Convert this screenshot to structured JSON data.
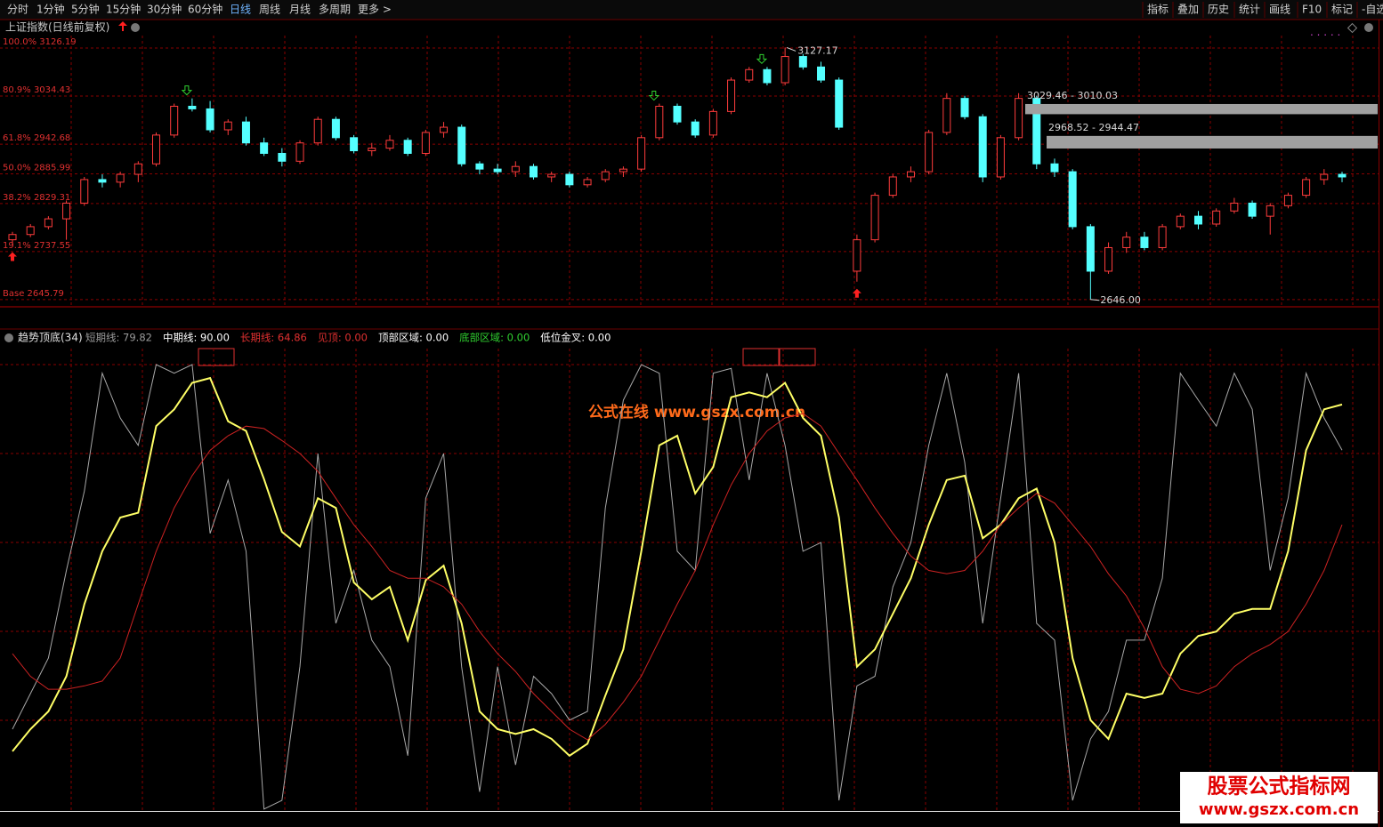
{
  "toolbar": {
    "left": [
      "分时",
      "1分钟",
      "5分钟",
      "15分钟",
      "30分钟",
      "60分钟",
      "日线",
      "周线",
      "月线",
      "多周期",
      "更多 >"
    ],
    "right": [
      "指标",
      "叠加",
      "历史",
      "统计",
      "画线",
      "F10",
      "标记",
      "-自选"
    ]
  },
  "watermarks": [
    "公式在线 www.gszx.com.cn",
    "股票公式指标网",
    "www.gszx.com.cn"
  ],
  "chart_data": [
    {
      "type": "candlestick",
      "title": "上证指数(日线前复权)",
      "ylim": [
        2632,
        3150
      ],
      "up_color": "#ff3c3c",
      "down_color": "#54ffff",
      "levels": [
        {
          "value": 3126.19,
          "label": "100.0% 3126.19"
        },
        {
          "value": 3034.43,
          "label": "80.9% 3034.43"
        },
        {
          "value": 2942.68,
          "label": "61.8% 2942.68"
        },
        {
          "value": 2885.99,
          "label": "50.0% 2885.99"
        },
        {
          "value": 2829.31,
          "label": "38.2% 2829.31"
        },
        {
          "value": 2737.55,
          "label": "19.1% 2737.55"
        },
        {
          "value": 2645.79,
          "label": "Base 2645.79"
        }
      ],
      "zones": [
        {
          "high": 3029.46,
          "low": 3010.03,
          "label": "3029.46 - 3010.03"
        },
        {
          "high": 2968.52,
          "low": 2944.47,
          "label": "2968.52 - 2944.47"
        }
      ],
      "annotations": [
        {
          "value": 3127.17,
          "label": "3127.17"
        },
        {
          "value": 2646.0,
          "label": "2646.00"
        }
      ],
      "candles": [
        [
          2760,
          2775,
          2750,
          2770
        ],
        [
          2770,
          2790,
          2765,
          2785
        ],
        [
          2785,
          2805,
          2780,
          2800
        ],
        [
          2800,
          2835,
          2760,
          2830
        ],
        [
          2830,
          2880,
          2825,
          2875
        ],
        [
          2875,
          2885,
          2860,
          2870
        ],
        [
          2870,
          2890,
          2860,
          2885
        ],
        [
          2885,
          2910,
          2870,
          2905
        ],
        [
          2905,
          2965,
          2900,
          2960
        ],
        [
          2960,
          3020,
          2955,
          3015
        ],
        [
          3015,
          3030,
          3005,
          3010
        ],
        [
          3010,
          3025,
          2965,
          2970
        ],
        [
          2970,
          2990,
          2960,
          2985
        ],
        [
          2985,
          2995,
          2940,
          2945
        ],
        [
          2945,
          2955,
          2920,
          2925
        ],
        [
          2925,
          2935,
          2900,
          2910
        ],
        [
          2910,
          2950,
          2905,
          2945
        ],
        [
          2945,
          2995,
          2940,
          2990
        ],
        [
          2990,
          2995,
          2950,
          2955
        ],
        [
          2955,
          2960,
          2925,
          2930
        ],
        [
          2930,
          2945,
          2920,
          2935
        ],
        [
          2935,
          2960,
          2930,
          2950
        ],
        [
          2950,
          2955,
          2920,
          2925
        ],
        [
          2925,
          2970,
          2920,
          2965
        ],
        [
          2965,
          2985,
          2955,
          2975
        ],
        [
          2975,
          2980,
          2900,
          2905
        ],
        [
          2905,
          2910,
          2885,
          2895
        ],
        [
          2895,
          2905,
          2885,
          2890
        ],
        [
          2890,
          2910,
          2880,
          2900
        ],
        [
          2900,
          2905,
          2875,
          2880
        ],
        [
          2880,
          2890,
          2870,
          2885
        ],
        [
          2885,
          2890,
          2860,
          2865
        ],
        [
          2865,
          2880,
          2860,
          2875
        ],
        [
          2875,
          2895,
          2870,
          2890
        ],
        [
          2890,
          2900,
          2880,
          2895
        ],
        [
          2895,
          2960,
          2890,
          2955
        ],
        [
          2955,
          3020,
          2950,
          3015
        ],
        [
          3015,
          3020,
          2980,
          2985
        ],
        [
          2985,
          2990,
          2955,
          2960
        ],
        [
          2960,
          3010,
          2955,
          3005
        ],
        [
          3005,
          3070,
          3000,
          3065
        ],
        [
          3065,
          3090,
          3060,
          3085
        ],
        [
          3085,
          3090,
          3055,
          3060
        ],
        [
          3060,
          3127.17,
          3055,
          3110
        ],
        [
          3110,
          3115,
          3085,
          3090
        ],
        [
          3090,
          3100,
          3060,
          3065
        ],
        [
          3065,
          3070,
          2970,
          2975
        ],
        [
          2700,
          2770,
          2680,
          2760
        ],
        [
          2760,
          2850,
          2755,
          2845
        ],
        [
          2845,
          2885,
          2840,
          2880
        ],
        [
          2880,
          2900,
          2870,
          2890
        ],
        [
          2890,
          2970,
          2885,
          2965
        ],
        [
          2965,
          3040,
          2960,
          3030
        ],
        [
          3030,
          3035,
          2990,
          2995
        ],
        [
          2995,
          3000,
          2870,
          2880
        ],
        [
          2880,
          2960,
          2875,
          2955
        ],
        [
          2955,
          3040,
          2950,
          3030
        ],
        [
          3030,
          3035,
          2895,
          2905
        ],
        [
          2905,
          2915,
          2880,
          2890
        ],
        [
          2890,
          2895,
          2780,
          2785
        ],
        [
          2785,
          2790,
          2646.0,
          2700
        ],
        [
          2700,
          2755,
          2695,
          2745
        ],
        [
          2745,
          2775,
          2735,
          2765
        ],
        [
          2765,
          2775,
          2740,
          2745
        ],
        [
          2745,
          2790,
          2740,
          2785
        ],
        [
          2785,
          2810,
          2780,
          2805
        ],
        [
          2805,
          2815,
          2780,
          2790
        ],
        [
          2790,
          2820,
          2785,
          2815
        ],
        [
          2815,
          2840,
          2810,
          2830
        ],
        [
          2830,
          2835,
          2800,
          2805
        ],
        [
          2805,
          2830,
          2770,
          2825
        ],
        [
          2825,
          2850,
          2820,
          2845
        ],
        [
          2845,
          2880,
          2840,
          2875
        ],
        [
          2875,
          2895,
          2865,
          2885
        ],
        [
          2885,
          2890,
          2870,
          2880
        ]
      ]
    },
    {
      "type": "line",
      "title": "趋势顶底(34)",
      "ylim": [
        0,
        100
      ],
      "legend": [
        {
          "label": "短期线: 79.82",
          "color": "#9a9a9a"
        },
        {
          "label": "中期线: 90.00",
          "color": "#ffffff"
        },
        {
          "label": "长期线: 64.86",
          "color": "#e03030"
        },
        {
          "label": "见顶: 0.00",
          "color": "#e03030"
        },
        {
          "label": "顶部区域: 0.00",
          "color": "#ffffff"
        },
        {
          "label": "底部区域: 0.00",
          "color": "#30d030"
        },
        {
          "label": "低位金叉: 0.00",
          "color": "#ffffff"
        }
      ],
      "series": [
        {
          "color": "#a8a8a8",
          "width": 1,
          "values": [
            17,
            24.4,
            31.8,
            50,
            66.5,
            91,
            81.7,
            76,
            92.8,
            91,
            92.8,
            57.7,
            68.8,
            54,
            0.4,
            2.2,
            30,
            74.3,
            39,
            50,
            35.5,
            30,
            11.5,
            65,
            74.3,
            30,
            4,
            30,
            9.6,
            28,
            24.4,
            18.9,
            20.7,
            63,
            85.4,
            92.8,
            91,
            54,
            50,
            91,
            92,
            68.8,
            91,
            76,
            54,
            55.8,
            2.2,
            26,
            28,
            46.6,
            55.8,
            76,
            91,
            72.5,
            39,
            65,
            91,
            39,
            35.5,
            2.2,
            15,
            20.7,
            35.5,
            35.5,
            48.4,
            91,
            85.4,
            80,
            91,
            83.5,
            50,
            65,
            91,
            81.7,
            75
          ]
        },
        {
          "color": "#ffff66",
          "width": 2,
          "values": [
            12.4,
            17,
            20.7,
            28,
            43,
            54,
            61,
            62,
            80,
            83.5,
            89,
            90,
            81,
            79,
            69,
            58,
            55,
            65,
            63,
            47.5,
            44,
            46.6,
            35.5,
            48,
            51,
            39,
            20.7,
            17,
            16,
            17,
            15,
            11.5,
            14,
            24,
            33.6,
            54,
            76,
            78,
            66,
            71.5,
            86,
            87,
            86,
            89,
            81.7,
            78,
            61,
            30,
            33.6,
            41,
            48.4,
            59.5,
            68.8,
            69.7,
            56.7,
            59.5,
            65,
            67,
            55.8,
            31.8,
            18.9,
            15,
            24.4,
            23.5,
            24.4,
            32.7,
            36.4,
            37.3,
            41,
            42,
            42,
            54,
            75,
            83.5,
            84.5
          ]
        },
        {
          "color": "#cc2222",
          "width": 1,
          "values": [
            32.7,
            28,
            25.3,
            25.3,
            26,
            27,
            31.8,
            43,
            54,
            63,
            69.7,
            75,
            78,
            80,
            79.5,
            77,
            74.3,
            70.6,
            65,
            59.5,
            55,
            50,
            48.4,
            48.4,
            46.6,
            43,
            37.3,
            32.7,
            29,
            24.4,
            20.7,
            17,
            14.8,
            18,
            22.6,
            28,
            35.5,
            43,
            50,
            59.5,
            67.8,
            74.3,
            79,
            81.7,
            82.6,
            80,
            74.3,
            68.8,
            63,
            57.7,
            53,
            50,
            49.3,
            50,
            54,
            59.5,
            63,
            66,
            64,
            59.5,
            55,
            49.3,
            44.7,
            38,
            30,
            25.3,
            24.4,
            26,
            30,
            32.7,
            34.6,
            37.3,
            43,
            50,
            59.5
          ]
        }
      ]
    }
  ]
}
